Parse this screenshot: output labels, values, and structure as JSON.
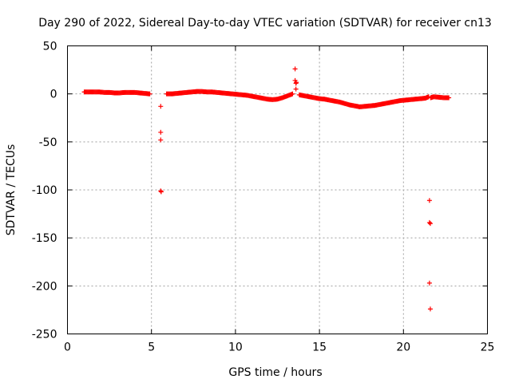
{
  "chart_data": {
    "type": "scatter",
    "title": "Day 290 of 2022, Sidereal Day-to-day VTEC variation (SDTVAR) for receiver cn13",
    "xlabel": "GPS time / hours",
    "ylabel": "SDTVAR / TECUs",
    "xlim": [
      0,
      25
    ],
    "ylim": [
      -250,
      50
    ],
    "xticks": [
      0,
      5,
      10,
      15,
      20,
      25
    ],
    "yticks": [
      50,
      0,
      -50,
      -100,
      -150,
      -200,
      -250
    ],
    "grid": true,
    "marker": "+",
    "color": "#ff0000",
    "series": [
      {
        "name": "SDTVAR",
        "x": [
          1.0,
          1.3,
          1.6,
          1.9,
          2.2,
          2.5,
          2.8,
          3.1,
          3.4,
          3.7,
          4.0,
          4.3,
          4.6,
          4.9,
          5.55,
          5.55,
          5.55,
          5.55,
          5.58,
          5.9,
          6.2,
          6.5,
          6.8,
          7.1,
          7.4,
          7.7,
          8.0,
          8.3,
          8.6,
          8.9,
          9.2,
          9.5,
          9.8,
          10.1,
          10.4,
          10.7,
          11.0,
          11.3,
          11.6,
          11.9,
          12.2,
          12.5,
          12.8,
          13.1,
          13.4,
          13.55,
          13.55,
          13.6,
          13.6,
          13.62,
          13.8,
          14.1,
          14.4,
          14.7,
          15.0,
          15.3,
          15.6,
          15.9,
          16.2,
          16.5,
          16.8,
          17.1,
          17.4,
          17.7,
          18.0,
          18.3,
          18.6,
          18.9,
          19.2,
          19.5,
          19.8,
          20.1,
          20.4,
          20.7,
          21.0,
          21.3,
          21.5,
          21.55,
          21.55,
          21.55,
          21.6,
          21.6,
          21.62,
          21.8,
          22.1,
          22.4,
          22.7
        ],
        "y": [
          2,
          2,
          2,
          2,
          1.5,
          1.5,
          1,
          1,
          1.5,
          1.5,
          1.5,
          1,
          0.5,
          0,
          -13,
          -40,
          -48,
          -101,
          -102,
          0,
          0,
          0.5,
          1,
          1.5,
          2,
          2.5,
          2.5,
          2,
          2,
          1.5,
          1,
          0.5,
          0,
          -0.5,
          -1,
          -1.5,
          -2.5,
          -3.5,
          -4.5,
          -5.5,
          -6,
          -5.5,
          -4,
          -2,
          0,
          26,
          14,
          11,
          5,
          12,
          -1,
          -2,
          -3,
          -4,
          -5,
          -5.5,
          -6.5,
          -7.5,
          -8.5,
          -10,
          -11.5,
          -12.5,
          -13.5,
          -13,
          -12.5,
          -12,
          -11,
          -10,
          -9,
          -8,
          -7,
          -6.5,
          -6,
          -5.5,
          -5,
          -4.5,
          -3,
          -111,
          -134,
          -197,
          -135,
          -224,
          -4,
          -3,
          -3.5,
          -4,
          -4
        ]
      }
    ]
  }
}
